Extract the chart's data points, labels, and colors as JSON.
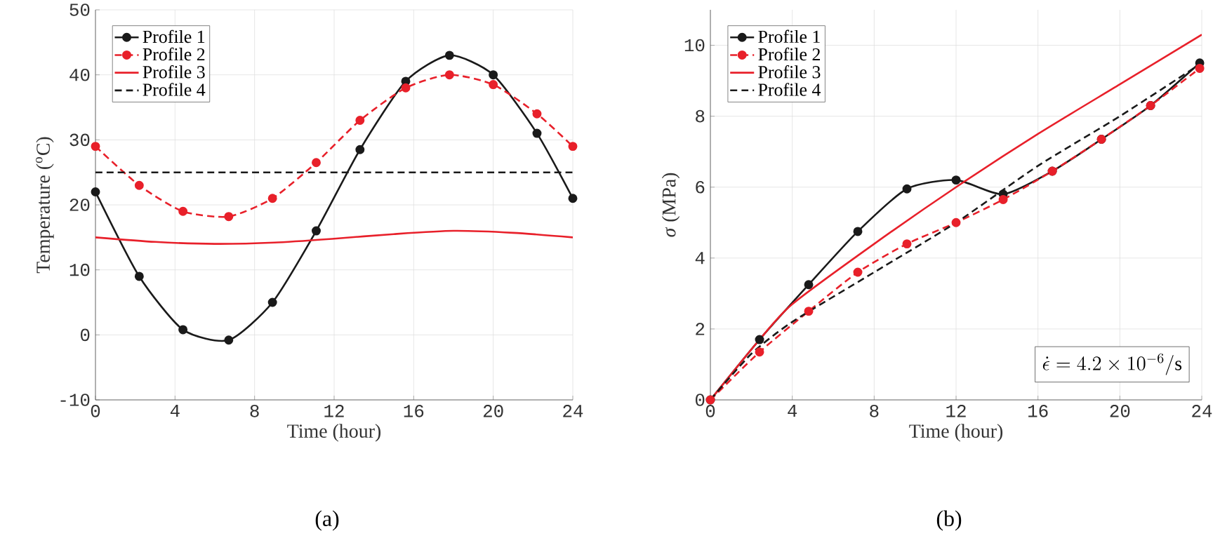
{
  "chart_data": [
    {
      "type": "line",
      "title": "(a)",
      "xlabel": "Time (hour)",
      "ylabel": "Temperature ($^{o}$C)",
      "xlim": [
        0,
        24
      ],
      "ylim": [
        -10,
        50
      ],
      "xticks": [
        0,
        4,
        8,
        12,
        16,
        20,
        24
      ],
      "yticks": [
        -10,
        0,
        10,
        20,
        30,
        40,
        50
      ],
      "grid": true,
      "legend": "top left",
      "series": [
        {
          "name": "Profile 1",
          "color": "#1a1a1a",
          "marker": "circle",
          "line_style": "solid",
          "x": [
            0,
            2.2,
            4.4,
            6.7,
            8.9,
            11.1,
            13.3,
            15.6,
            17.8,
            20,
            22.2,
            24
          ],
          "values": [
            22,
            9,
            0.8,
            -0.8,
            5,
            16,
            28.5,
            39,
            43,
            40,
            31,
            21
          ]
        },
        {
          "name": "Profile 2",
          "color": "#e8202a",
          "marker": "circle",
          "line_style": "dashed",
          "x": [
            0,
            2.2,
            4.4,
            6.7,
            8.9,
            11.1,
            13.3,
            15.6,
            17.8,
            20,
            22.2,
            24
          ],
          "values": [
            29,
            23,
            19,
            18.2,
            21,
            26.5,
            33,
            38,
            40,
            38.5,
            34,
            29
          ]
        },
        {
          "name": "Profile 3",
          "color": "#e8202a",
          "marker": "none",
          "line_style": "solid",
          "x": [
            0,
            3,
            6,
            9,
            12,
            15,
            18,
            21,
            24
          ],
          "values": [
            15,
            14.3,
            14,
            14.2,
            14.8,
            15.5,
            16,
            15.7,
            15
          ]
        },
        {
          "name": "Profile 4",
          "color": "#1a1a1a",
          "marker": "none",
          "line_style": "dashed",
          "x": [
            0,
            24
          ],
          "values": [
            25,
            25
          ]
        }
      ]
    },
    {
      "type": "line",
      "title": "(b)",
      "xlabel": "Time (hour)",
      "ylabel": "*σ* (MPa)",
      "xlim": [
        0,
        24
      ],
      "ylim": [
        0,
        11
      ],
      "xticks": [
        0,
        4,
        8,
        12,
        16,
        20,
        24
      ],
      "yticks": [
        0,
        2,
        4,
        6,
        8,
        10
      ],
      "grid": true,
      "legend": "top left",
      "annotations": [
        "\\dot{\\epsilon} = 4.2 \\times 10^{-6}/\\mathrm{s}"
      ],
      "series": [
        {
          "name": "Profile 1",
          "color": "#1a1a1a",
          "marker": "circle",
          "line_style": "solid",
          "x": [
            0,
            2.4,
            4.8,
            7.2,
            9.6,
            12,
            14.3,
            16.7,
            19.1,
            21.5,
            23.9
          ],
          "values": [
            0,
            1.7,
            3.25,
            4.75,
            5.95,
            6.2,
            5.8,
            6.45,
            7.35,
            8.3,
            9.5
          ]
        },
        {
          "name": "Profile 2",
          "color": "#e8202a",
          "marker": "circle",
          "line_style": "dashed",
          "x": [
            0,
            2.4,
            4.8,
            7.2,
            9.6,
            12,
            14.3,
            16.7,
            19.1,
            21.5,
            23.9
          ],
          "values": [
            0,
            1.35,
            2.5,
            3.6,
            4.4,
            5.0,
            5.65,
            6.45,
            7.35,
            8.3,
            9.35
          ]
        },
        {
          "name": "Profile 3",
          "color": "#e8202a",
          "marker": "none",
          "line_style": "solid",
          "x": [
            0,
            2.4,
            4,
            8,
            12,
            16,
            20,
            24
          ],
          "values": [
            0,
            1.7,
            2.7,
            4.4,
            6.0,
            7.5,
            8.9,
            10.3
          ]
        },
        {
          "name": "Profile 4",
          "color": "#1a1a1a",
          "marker": "none",
          "line_style": "dashed",
          "x": [
            0,
            2,
            4,
            8,
            12,
            16,
            20,
            24
          ],
          "values": [
            0,
            1.3,
            2.2,
            3.6,
            5.0,
            6.6,
            8.0,
            9.5
          ]
        }
      ]
    }
  ]
}
